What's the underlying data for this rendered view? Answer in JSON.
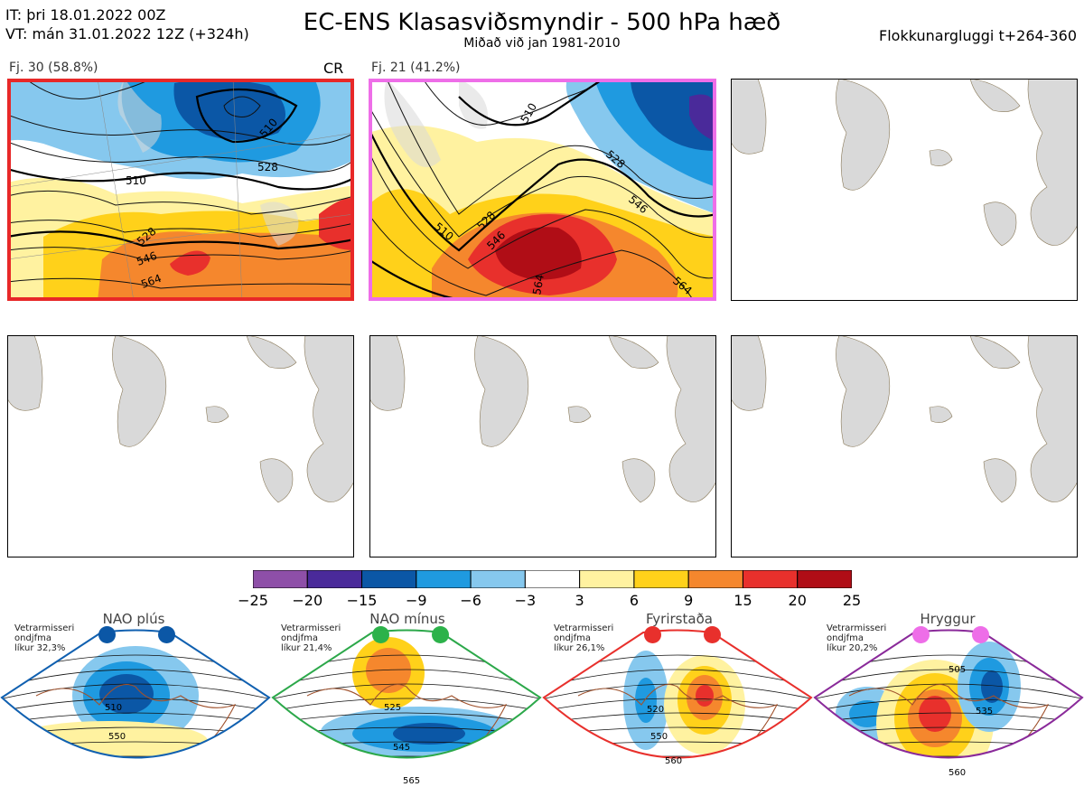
{
  "header": {
    "it_line": "IT: þri 18.01.2022 00Z",
    "vt_line": "VT: mán 31.01.2022 12Z  (+324h)",
    "title": "EC-ENS Klasasviðsmyndir - 500 hPa hæð",
    "subtitle": "Miðað við jan 1981-2010",
    "window": "Flokkunargluggi t+264-360"
  },
  "panels": {
    "p1": {
      "label": "Fj. 30 (58.8%)",
      "tag": "CR",
      "contours": [
        "510",
        "528",
        "546",
        "564",
        "510",
        "528"
      ]
    },
    "p2": {
      "label": "Fj. 21 (41.2%)",
      "contours": [
        "510",
        "528",
        "546",
        "564",
        "510",
        "528",
        "546",
        "564"
      ]
    }
  },
  "colorbar": {
    "colors": [
      "#8e4fa8",
      "#4a2a9a",
      "#0b57a6",
      "#1f9ae0",
      "#86c8ee",
      "#ffffff",
      "#fff2a0",
      "#ffd11a",
      "#f5872d",
      "#e8302c",
      "#b00d16"
    ],
    "ticks": [
      "−25",
      "−20",
      "−15",
      "−9",
      "−6",
      "−3",
      "3",
      "6",
      "9",
      "15",
      "20",
      "25"
    ]
  },
  "regimes": [
    {
      "title": "NAO plús",
      "note": [
        "Vetrarmisseri",
        "ondjfma",
        "líkur 32,3%"
      ],
      "dot_color": "#0b57a6",
      "frame_color": "#1060b0",
      "labels": [
        "510",
        "550"
      ]
    },
    {
      "title": "NAO mínus",
      "note": [
        "Vetrarmisseri",
        "ondjfma",
        "líkur 21,4%"
      ],
      "dot_color": "#2cb24a",
      "frame_color": "#2ca84a",
      "labels": [
        "525",
        "545",
        "565"
      ]
    },
    {
      "title": "Fyrirstaða",
      "note": [
        "Vetrarmisseri",
        "ondjfma",
        "líkur 26,1%"
      ],
      "dot_color": "#e8302c",
      "frame_color": "#e8302c",
      "labels": [
        "520",
        "550",
        "560"
      ]
    },
    {
      "title": "Hryggur",
      "note": [
        "Vetrarmisseri",
        "ondjfma",
        "líkur 20,2%"
      ],
      "dot_color": "#ee6ee8",
      "frame_color": "#8a2a9a",
      "labels": [
        "505",
        "535",
        "560"
      ]
    }
  ],
  "chart_data": [
    {
      "type": "heatmap",
      "title": "Fj. 30 (58.8%)",
      "contour_labels": [
        "510",
        "528",
        "546",
        "564"
      ]
    },
    {
      "type": "heatmap",
      "title": "Fj. 21 (41.2%)",
      "contour_labels": [
        "510",
        "528",
        "546",
        "564"
      ]
    },
    {
      "type": "heatmap",
      "title": "NAO plús",
      "contour_labels": [
        "510",
        "550"
      ]
    },
    {
      "type": "heatmap",
      "title": "NAO mínus",
      "contour_labels": [
        "525",
        "545",
        "565"
      ]
    },
    {
      "type": "heatmap",
      "title": "Fyrirstaða",
      "contour_labels": [
        "520",
        "550",
        "560"
      ]
    },
    {
      "type": "heatmap",
      "title": "Hryggur",
      "contour_labels": [
        "505",
        "535",
        "560"
      ]
    }
  ]
}
